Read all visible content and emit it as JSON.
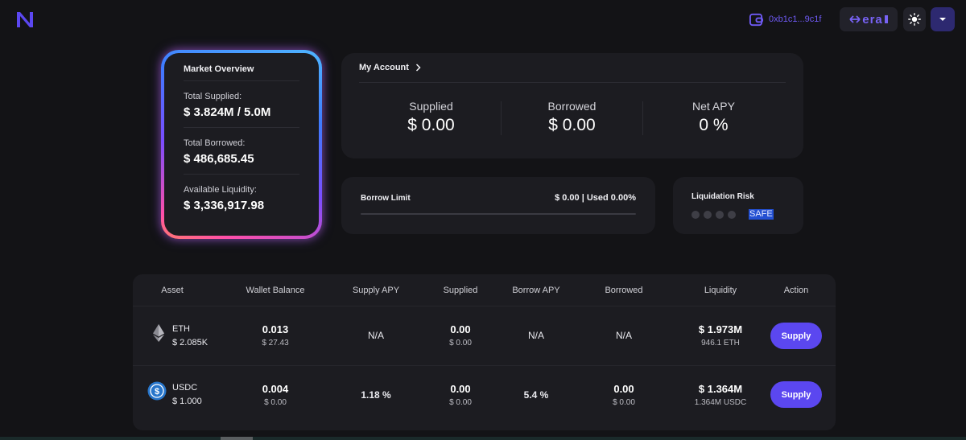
{
  "header": {
    "wallet_address": "0xb1c1...9c1f",
    "network_label": "era",
    "icons": {
      "logo": "logo-n-icon",
      "wallet": "wallet-icon",
      "network": "swap-arrows-icon",
      "theme": "sun-icon",
      "menu": "caret-down-icon"
    }
  },
  "market_overview": {
    "title": "Market Overview",
    "total_supplied_label": "Total Supplied:",
    "total_supplied_value": "$ 3.824M / 5.0M",
    "total_borrowed_label": "Total Borrowed:",
    "total_borrowed_value": "$ 486,685.45",
    "available_liquidity_label": "Available Liquidity:",
    "available_liquidity_value": "$ 3,336,917.98"
  },
  "account": {
    "title": "My Account",
    "supplied_label": "Supplied",
    "supplied_value": "$ 0.00",
    "borrowed_label": "Borrowed",
    "borrowed_value": "$ 0.00",
    "net_apy_label": "Net APY",
    "net_apy_value": "0 %"
  },
  "borrow_limit": {
    "label": "Borrow Limit",
    "value": "$ 0.00 | Used 0.00%",
    "used_fraction": 0
  },
  "liquidation_risk": {
    "label": "Liquidation Risk",
    "status": "SAFE",
    "level": 0,
    "max_level": 4
  },
  "table": {
    "columns": [
      "Asset",
      "Wallet Balance",
      "Supply APY",
      "Supplied",
      "Borrow APY",
      "Borrowed",
      "Liquidity",
      "Action"
    ],
    "rows": [
      {
        "asset": "ETH",
        "asset_price": "$ 2.085K",
        "icon": "ethereum-icon",
        "wallet_balance": "0.013",
        "wallet_balance_usd": "$ 27.43",
        "supply_apy": "N/A",
        "supplied": "0.00",
        "supplied_usd": "$ 0.00",
        "borrow_apy": "N/A",
        "borrowed": "N/A",
        "borrowed_usd": "",
        "liquidity": "$ 1.973M",
        "liquidity_sub": "946.1 ETH",
        "action": "Supply"
      },
      {
        "asset": "USDC",
        "asset_price": "$ 1.000",
        "icon": "usdc-icon",
        "wallet_balance": "0.004",
        "wallet_balance_usd": "$ 0.00",
        "supply_apy": "1.18 %",
        "supplied": "0.00",
        "supplied_usd": "$ 0.00",
        "borrow_apy": "5.4 %",
        "borrowed": "0.00",
        "borrowed_usd": "$ 0.00",
        "liquidity": "$ 1.364M",
        "liquidity_sub": "1.364M USDC",
        "action": "Supply"
      }
    ]
  },
  "colors": {
    "background": "#131316",
    "card": "#1c1c21",
    "accent": "#5b47f0",
    "safe_badge": "#2350d2"
  }
}
